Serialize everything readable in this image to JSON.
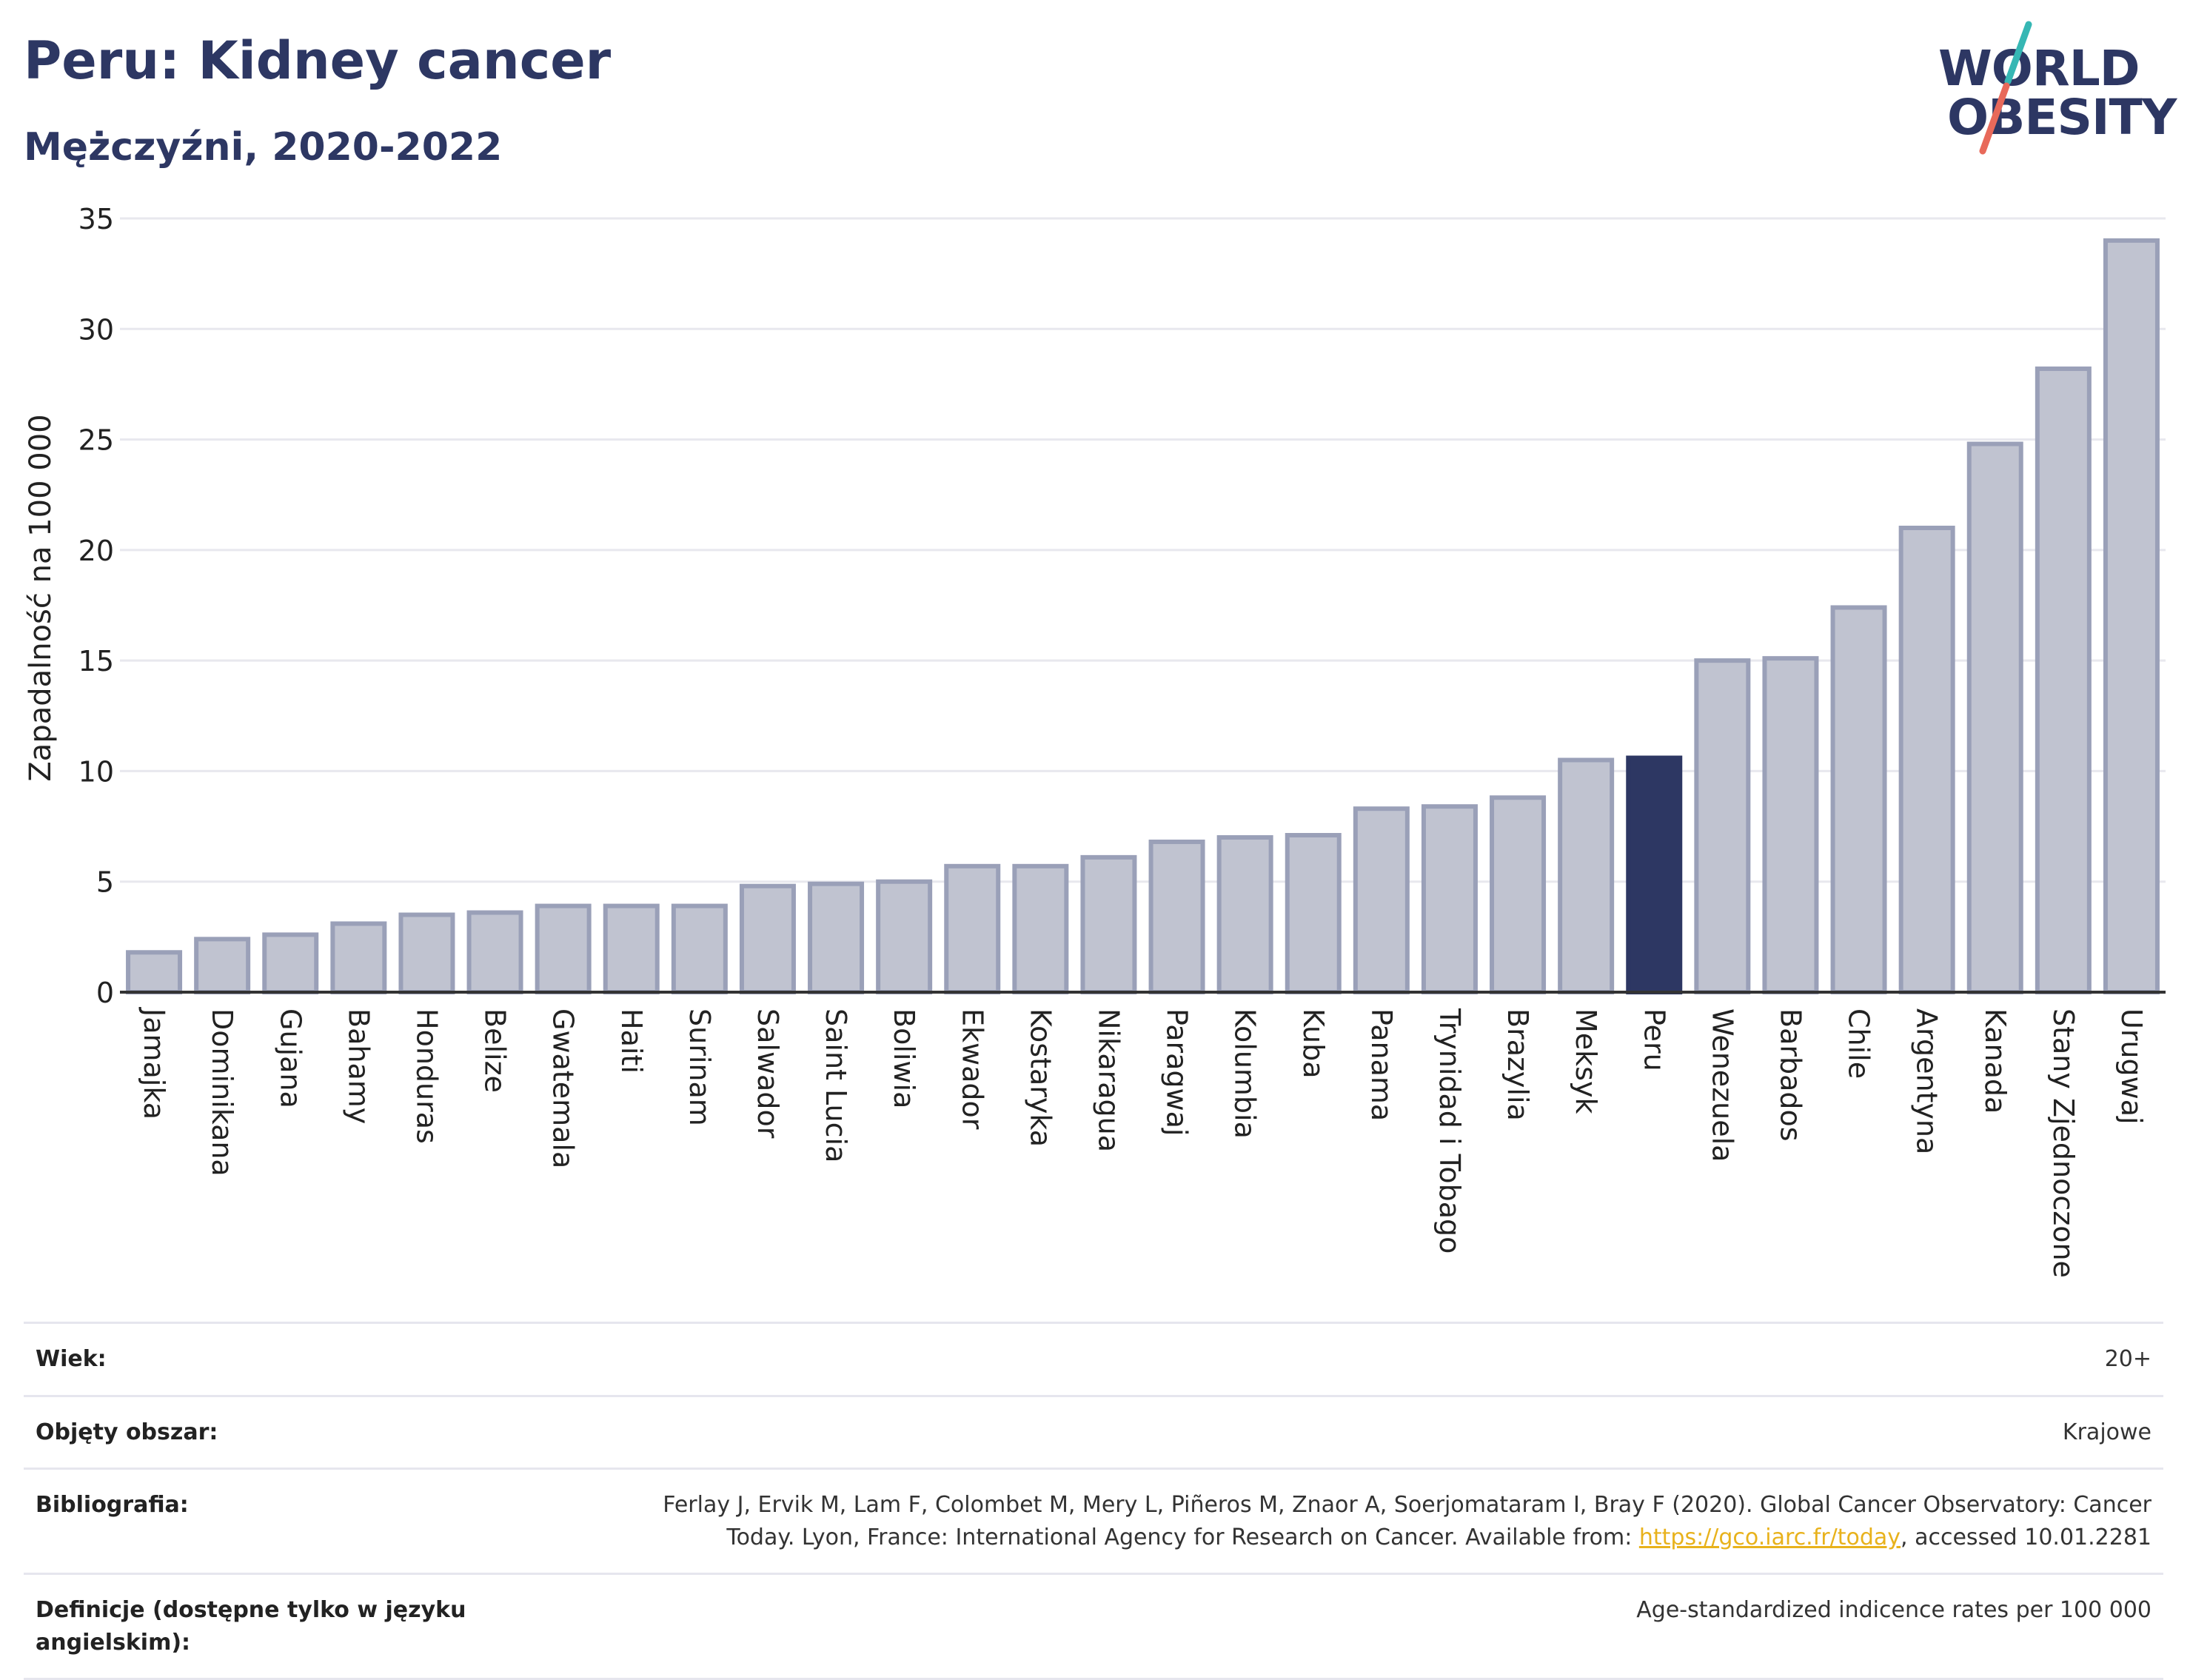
{
  "header": {
    "title": "Peru: Kidney cancer",
    "subtitle": "Mężczyźni, 2020-2022"
  },
  "logo": {
    "line1": "WORLD",
    "line2": "OBESITY",
    "accent_teal": "#36b7b4",
    "accent_red": "#e8695a"
  },
  "colors": {
    "bar": "#c0c3d0",
    "bar_border": "#9aa0b8",
    "highlight": "#2d3763",
    "text": "#2d3763"
  },
  "chart_data": {
    "type": "bar",
    "ylabel": "Zapadalność na 100 000",
    "ylim": [
      0,
      35
    ],
    "yticks": [
      0,
      5,
      10,
      15,
      20,
      25,
      30,
      35
    ],
    "grid": true,
    "highlight": "Peru",
    "categories": [
      "Jamajka",
      "Dominikana",
      "Gujana",
      "Bahamy",
      "Honduras",
      "Belize",
      "Gwatemala",
      "Haiti",
      "Surinam",
      "Salwador",
      "Saint Lucia",
      "Boliwia",
      "Ekwador",
      "Kostaryka",
      "Nikaragua",
      "Paragwaj",
      "Kolumbia",
      "Kuba",
      "Panama",
      "Trynidad i Tobago",
      "Brazylia",
      "Meksyk",
      "Peru",
      "Wenezuela",
      "Barbados",
      "Chile",
      "Argentyna",
      "Kanada",
      "Stany Zjednoczone",
      "Urugwaj"
    ],
    "values": [
      1.8,
      2.4,
      2.6,
      3.1,
      3.5,
      3.6,
      3.9,
      3.9,
      3.9,
      4.8,
      4.9,
      5.0,
      5.7,
      5.7,
      6.1,
      6.8,
      7.0,
      7.1,
      8.3,
      8.4,
      8.8,
      10.5,
      10.6,
      15.0,
      15.1,
      17.4,
      21.0,
      24.8,
      28.2,
      34.0
    ]
  },
  "footer": {
    "rows": [
      {
        "label": "Wiek:",
        "value": "20+"
      },
      {
        "label": "Objęty obszar:",
        "value": "Krajowe"
      },
      {
        "label": "Bibliografia:",
        "value_pre": "Ferlay J, Ervik M, Lam F, Colombet M, Mery L, Piñeros M, Znaor A, Soerjomataram I, Bray F (2020). Global Cancer Observatory: Cancer Today. Lyon, France: International Agency for Research on Cancer. Available from: ",
        "link": "https://gco.iarc.fr/today",
        "value_post": ", accessed 10.01.2281"
      },
      {
        "label": "Definicje (dostępne tylko w języku angielskim):",
        "value": "Age-standardized indicence rates per 100 000"
      }
    ]
  }
}
